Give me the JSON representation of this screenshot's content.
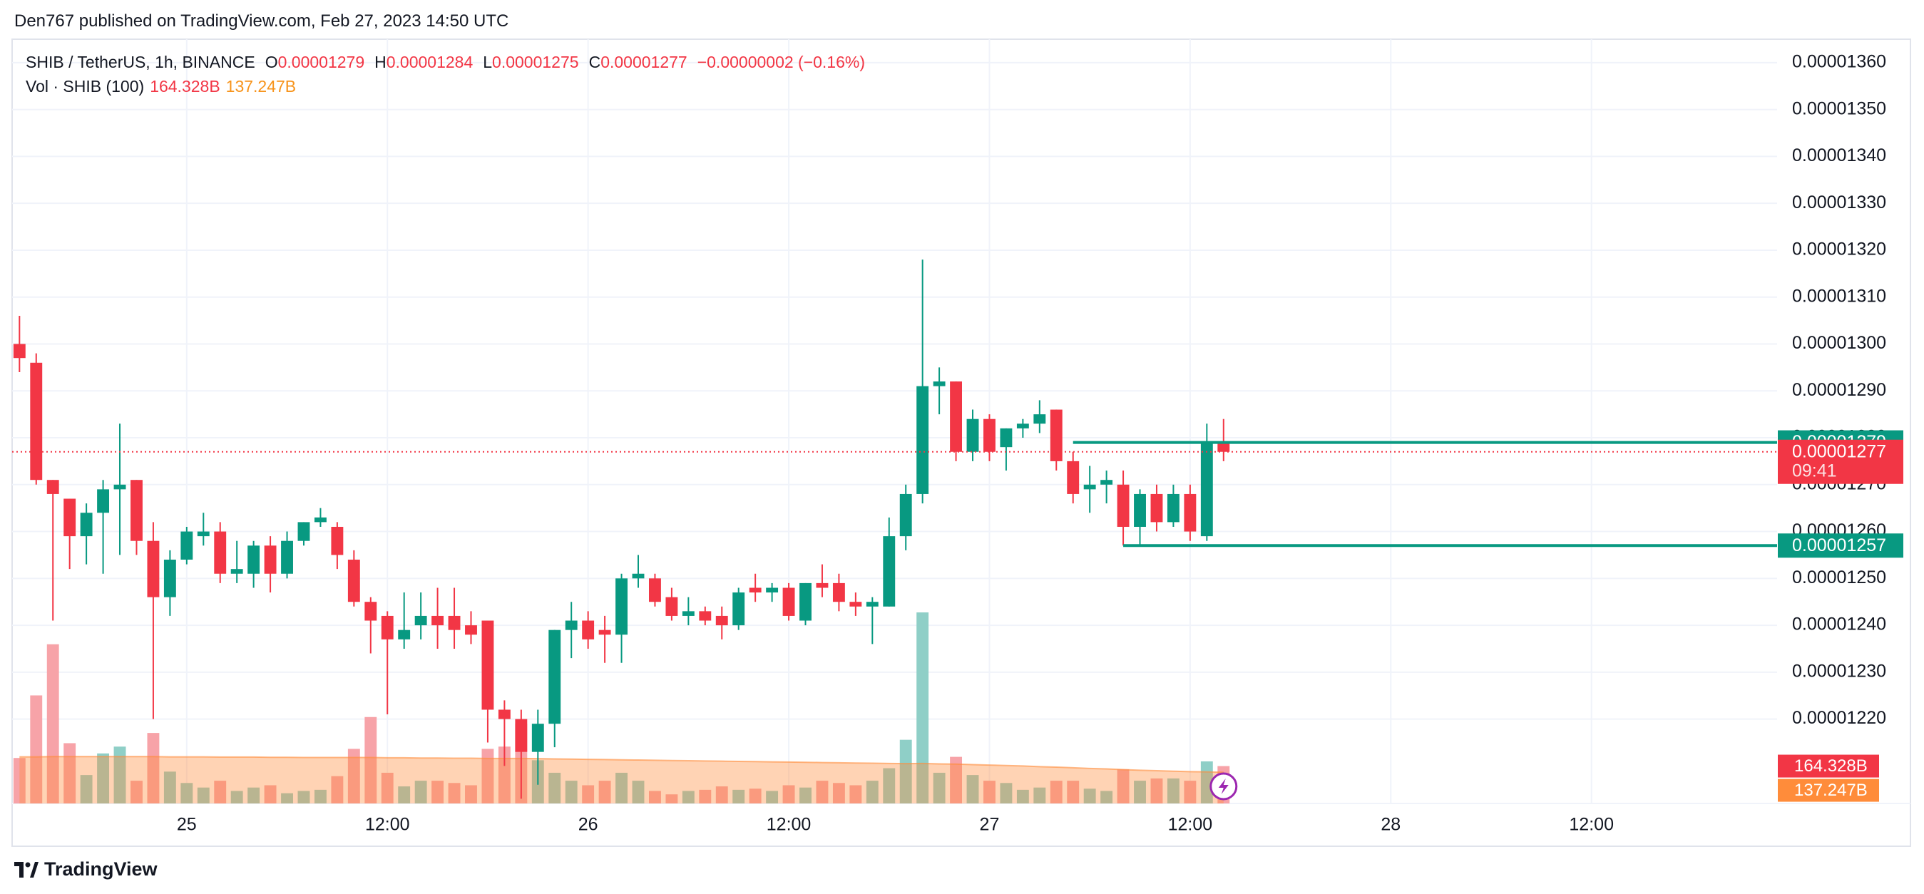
{
  "header": "Den767 published on TradingView.com, Feb 27, 2023 14:50 UTC",
  "footer": "TradingView",
  "chart_data": {
    "type": "candlestick",
    "symbol": "SHIB / TetherUS, 1h, BINANCE",
    "ohlc_legend": [
      {
        "key": "O",
        "value": "0.00001279"
      },
      {
        "key": "H",
        "value": "0.00001284"
      },
      {
        "key": "L",
        "value": "0.00001275"
      },
      {
        "key": "C",
        "value": "0.00001277"
      }
    ],
    "change": "−0.00000002 (−0.16%)",
    "volume_legend": {
      "title": "Vol · SHIB (100)",
      "value": "164.328B",
      "ma": "137.247B"
    },
    "up_color": "#089981",
    "down_color": "#f23645",
    "vol_up_color": "#8fcfc7",
    "vol_down_color": "#f7a3a8",
    "ma_color": "#ff8c3a",
    "open": [
      1.3e-05,
      1.296e-05,
      1.271e-05,
      1.267e-05,
      1.259e-05,
      1.264e-05,
      1.269e-05,
      1.271e-05,
      1.258e-05,
      1.246e-05,
      1.254e-05,
      1.259e-05,
      1.26e-05,
      1.251e-05,
      1.251e-05,
      1.257e-05,
      1.251e-05,
      1.258e-05,
      1.262e-05,
      1.261e-05,
      1.254e-05,
      1.245e-05,
      1.242e-05,
      1.237e-05,
      1.24e-05,
      1.242e-05,
      1.242e-05,
      1.24e-05,
      1.241e-05,
      1.222e-05,
      1.22e-05,
      1.213e-05,
      1.219e-05,
      1.239e-05,
      1.241e-05,
      1.239e-05,
      1.238e-05,
      1.25e-05,
      1.25e-05,
      1.246e-05,
      1.242e-05,
      1.243e-05,
      1.242e-05,
      1.24e-05,
      1.248e-05,
      1.247e-05,
      1.248e-05,
      1.241e-05,
      1.249e-05,
      1.249e-05,
      1.245e-05,
      1.244e-05,
      1.244e-05,
      1.259e-05,
      1.268e-05,
      1.291e-05,
      1.292e-05,
      1.277e-05,
      1.284e-05,
      1.278e-05,
      1.282e-05,
      1.283e-05,
      1.286e-05,
      1.275e-05,
      1.269e-05,
      1.27e-05,
      1.27e-05,
      1.261e-05,
      1.268e-05,
      1.262e-05,
      1.268e-05,
      1.259e-05,
      1.279e-05
    ],
    "high": [
      1.306e-05,
      1.298e-05,
      1.271e-05,
      1.267e-05,
      1.266e-05,
      1.271e-05,
      1.283e-05,
      1.271e-05,
      1.262e-05,
      1.256e-05,
      1.261e-05,
      1.264e-05,
      1.262e-05,
      1.258e-05,
      1.258e-05,
      1.259e-05,
      1.26e-05,
      1.262e-05,
      1.265e-05,
      1.262e-05,
      1.256e-05,
      1.246e-05,
      1.243e-05,
      1.247e-05,
      1.247e-05,
      1.248e-05,
      1.248e-05,
      1.243e-05,
      1.241e-05,
      1.224e-05,
      1.222e-05,
      1.222e-05,
      1.239e-05,
      1.245e-05,
      1.243e-05,
      1.242e-05,
      1.251e-05,
      1.255e-05,
      1.251e-05,
      1.248e-05,
      1.246e-05,
      1.244e-05,
      1.244e-05,
      1.248e-05,
      1.251e-05,
      1.249e-05,
      1.249e-05,
      1.249e-05,
      1.253e-05,
      1.251e-05,
      1.247e-05,
      1.246e-05,
      1.263e-05,
      1.27e-05,
      1.318e-05,
      1.295e-05,
      1.292e-05,
      1.286e-05,
      1.285e-05,
      1.282e-05,
      1.284e-05,
      1.288e-05,
      1.286e-05,
      1.277e-05,
      1.274e-05,
      1.273e-05,
      1.273e-05,
      1.269e-05,
      1.27e-05,
      1.27e-05,
      1.27e-05,
      1.283e-05,
      1.284e-05
    ],
    "low": [
      1.294e-05,
      1.27e-05,
      1.241e-05,
      1.252e-05,
      1.253e-05,
      1.251e-05,
      1.255e-05,
      1.255e-05,
      1.22e-05,
      1.242e-05,
      1.253e-05,
      1.257e-05,
      1.249e-05,
      1.249e-05,
      1.248e-05,
      1.247e-05,
      1.25e-05,
      1.257e-05,
      1.261e-05,
      1.252e-05,
      1.244e-05,
      1.234e-05,
      1.221e-05,
      1.235e-05,
      1.237e-05,
      1.235e-05,
      1.235e-05,
      1.236e-05,
      1.215e-05,
      1.21e-05,
      1.203e-05,
      1.206e-05,
      1.214e-05,
      1.233e-05,
      1.235e-05,
      1.232e-05,
      1.232e-05,
      1.248e-05,
      1.244e-05,
      1.241e-05,
      1.24e-05,
      1.24e-05,
      1.237e-05,
      1.239e-05,
      1.245e-05,
      1.245e-05,
      1.241e-05,
      1.24e-05,
      1.246e-05,
      1.243e-05,
      1.242e-05,
      1.236e-05,
      1.244e-05,
      1.256e-05,
      1.266e-05,
      1.285e-05,
      1.275e-05,
      1.275e-05,
      1.275e-05,
      1.273e-05,
      1.28e-05,
      1.281e-05,
      1.273e-05,
      1.266e-05,
      1.264e-05,
      1.266e-05,
      1.257e-05,
      1.257e-05,
      1.26e-05,
      1.261e-05,
      1.258e-05,
      1.258e-05,
      1.275e-05
    ],
    "close": [
      1.297e-05,
      1.271e-05,
      1.268e-05,
      1.259e-05,
      1.264e-05,
      1.269e-05,
      1.27e-05,
      1.258e-05,
      1.246e-05,
      1.254e-05,
      1.26e-05,
      1.26e-05,
      1.251e-05,
      1.252e-05,
      1.257e-05,
      1.251e-05,
      1.258e-05,
      1.262e-05,
      1.263e-05,
      1.255e-05,
      1.245e-05,
      1.241e-05,
      1.237e-05,
      1.239e-05,
      1.242e-05,
      1.24e-05,
      1.239e-05,
      1.238e-05,
      1.222e-05,
      1.22e-05,
      1.213e-05,
      1.219e-05,
      1.239e-05,
      1.241e-05,
      1.237e-05,
      1.238e-05,
      1.25e-05,
      1.251e-05,
      1.245e-05,
      1.242e-05,
      1.243e-05,
      1.241e-05,
      1.24e-05,
      1.247e-05,
      1.247e-05,
      1.248e-05,
      1.242e-05,
      1.249e-05,
      1.248e-05,
      1.245e-05,
      1.244e-05,
      1.245e-05,
      1.259e-05,
      1.268e-05,
      1.291e-05,
      1.292e-05,
      1.277e-05,
      1.284e-05,
      1.277e-05,
      1.282e-05,
      1.283e-05,
      1.285e-05,
      1.275e-05,
      1.268e-05,
      1.27e-05,
      1.271e-05,
      1.261e-05,
      1.268e-05,
      1.262e-05,
      1.268e-05,
      1.26e-05,
      1.279e-05,
      1.277e-05
    ],
    "volume": {
      "values": [
        200,
        475,
        700,
        265,
        125,
        220,
        250,
        100,
        310,
        140,
        90,
        70,
        100,
        55,
        70,
        80,
        45,
        55,
        60,
        120,
        240,
        380,
        135,
        75,
        100,
        100,
        90,
        80,
        240,
        250,
        350,
        190,
        135,
        100,
        80,
        100,
        135,
        100,
        55,
        40,
        55,
        60,
        75,
        60,
        65,
        55,
        80,
        70,
        100,
        90,
        80,
        100,
        155,
        280,
        840,
        135,
        205,
        125,
        100,
        90,
        60,
        70,
        100,
        100,
        65,
        55,
        150,
        100,
        110,
        110,
        100,
        185,
        164.328
      ],
      "ma": [
        205,
        205,
        206,
        206,
        206,
        206,
        206,
        206,
        206,
        205,
        205,
        205,
        204,
        204,
        204,
        203,
        203,
        202,
        202,
        202,
        202,
        202,
        201,
        201,
        200,
        200,
        199,
        199,
        198,
        198,
        198,
        197,
        196,
        195,
        194,
        193,
        192,
        191,
        190,
        189,
        188,
        187,
        186,
        185,
        184,
        183,
        182,
        181,
        180,
        179,
        178,
        177,
        176,
        175,
        176,
        174,
        173,
        171,
        169,
        167,
        165,
        162,
        160,
        157,
        154,
        152,
        149,
        146,
        144,
        142,
        140,
        139,
        137.247
      ]
    },
    "ylim": [
      1.202e-05,
      1.365e-05
    ],
    "yticks": [
      {
        "value": 1.36e-05,
        "label": "0.00001360"
      },
      {
        "value": 1.35e-05,
        "label": "0.00001350"
      },
      {
        "value": 1.34e-05,
        "label": "0.00001340"
      },
      {
        "value": 1.33e-05,
        "label": "0.00001330"
      },
      {
        "value": 1.32e-05,
        "label": "0.00001320"
      },
      {
        "value": 1.31e-05,
        "label": "0.00001310"
      },
      {
        "value": 1.3e-05,
        "label": "0.00001300"
      },
      {
        "value": 1.29e-05,
        "label": "0.00001290"
      },
      {
        "value": 1.28e-05,
        "label": "0.00001280"
      },
      {
        "value": 1.27e-05,
        "label": "0.00001270"
      },
      {
        "value": 1.26e-05,
        "label": "0.00001260"
      },
      {
        "value": 1.25e-05,
        "label": "0.00001250"
      },
      {
        "value": 1.24e-05,
        "label": "0.00001240"
      },
      {
        "value": 1.23e-05,
        "label": "0.00001230"
      },
      {
        "value": 1.22e-05,
        "label": "0.00001220"
      }
    ],
    "xlim": [
      -0.44,
      105.1
    ],
    "xticks": [
      {
        "value": 10,
        "label": "25"
      },
      {
        "value": 22,
        "label": "12:00"
      },
      {
        "value": 34,
        "label": "26"
      },
      {
        "value": 46,
        "label": "12:00"
      },
      {
        "value": 58,
        "label": "27"
      },
      {
        "value": 70,
        "label": "12:00"
      },
      {
        "value": 82,
        "label": "28"
      },
      {
        "value": 94,
        "label": "12:00"
      }
    ],
    "grid": true,
    "levels": [
      {
        "value": 1.279e-05,
        "label": "0.00001279",
        "start": 63
      },
      {
        "value": 1.257e-05,
        "label": "0.00001257",
        "start": 66
      }
    ],
    "last_price": {
      "value": 1.277e-05,
      "label": "0.00001277",
      "countdown": "09:41"
    }
  }
}
